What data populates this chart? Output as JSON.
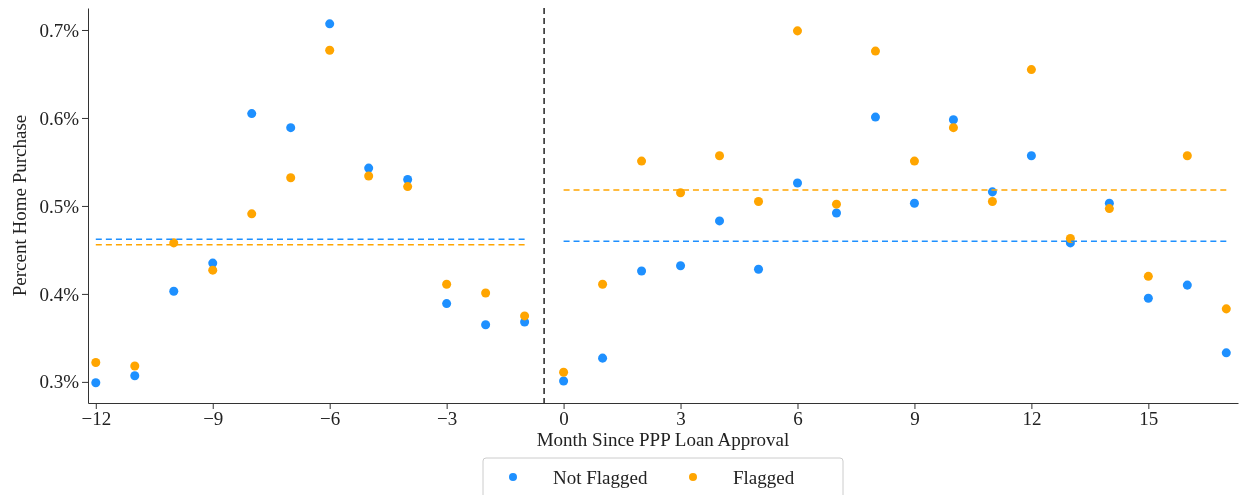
{
  "chart_data": {
    "type": "scatter",
    "xlabel": "Month Since PPP Loan Approval",
    "ylabel": "Percent Home Purchase",
    "xlim": [
      -12.2,
      17.3
    ],
    "xticks": [
      {
        "value": -12,
        "label": "−12"
      },
      {
        "value": -9,
        "label": "−9"
      },
      {
        "value": -6,
        "label": "−6"
      },
      {
        "value": -3,
        "label": "−3"
      },
      0,
      3,
      6,
      9,
      12,
      15
    ],
    "ylim": [
      0.276,
      0.725
    ],
    "yticks": [
      {
        "value": 0.3,
        "label": "0.3%"
      },
      {
        "value": 0.4,
        "label": "0.4%"
      },
      {
        "value": 0.5,
        "label": "0.5%"
      },
      {
        "value": 0.6,
        "label": "0.6%"
      },
      {
        "value": 0.7,
        "label": "0.7%"
      }
    ],
    "grid": false,
    "legend": "bottom",
    "marker": "circle",
    "ref_lines": [
      {
        "axis": "x",
        "value": -0.5,
        "color": "#222222",
        "line_style": "dashed"
      }
    ],
    "x": [
      -12,
      -11,
      -10,
      -9,
      -8,
      -7,
      -6,
      -5,
      -4,
      -3,
      -2,
      -1,
      0,
      1,
      2,
      3,
      4,
      5,
      6,
      7,
      8,
      9,
      10,
      11,
      12,
      13,
      14,
      15,
      16,
      17
    ],
    "series": [
      {
        "name": "Not Flagged",
        "color": "#1e90ff",
        "values": [
          0.299,
          0.307,
          0.403,
          0.435,
          0.605,
          0.589,
          0.707,
          0.543,
          0.53,
          0.389,
          0.365,
          0.368,
          0.301,
          0.327,
          0.426,
          0.432,
          0.483,
          0.428,
          0.526,
          0.492,
          0.601,
          0.503,
          0.598,
          0.516,
          0.557,
          0.458,
          0.503,
          0.395,
          0.41,
          0.333
        ]
      },
      {
        "name": "Flagged",
        "color": "#ffa500",
        "values": [
          0.322,
          0.318,
          0.458,
          0.427,
          0.491,
          0.532,
          0.677,
          0.534,
          0.522,
          0.411,
          0.401,
          0.375,
          0.311,
          0.411,
          0.551,
          0.515,
          0.557,
          0.505,
          0.699,
          0.502,
          0.676,
          0.551,
          0.589,
          0.505,
          0.655,
          0.463,
          0.497,
          0.42,
          0.557,
          0.383
        ]
      },
      {
        "type": "line",
        "line_style": "dashed",
        "marker": "none",
        "color": "#1e90ff",
        "x": [
          -12,
          -1
        ],
        "values": [
          0.462,
          0.462
        ]
      },
      {
        "type": "line",
        "line_style": "dashed",
        "marker": "none",
        "color": "#ffa500",
        "x": [
          -12,
          -1
        ],
        "values": [
          0.456,
          0.456
        ]
      },
      {
        "type": "line",
        "line_style": "dashed",
        "marker": "none",
        "color": "#1e90ff",
        "x": [
          0,
          17
        ],
        "values": [
          0.46,
          0.46
        ]
      },
      {
        "type": "line",
        "line_style": "dashed",
        "marker": "none",
        "color": "#ffa500",
        "x": [
          0,
          17
        ],
        "values": [
          0.518,
          0.518
        ]
      }
    ]
  }
}
